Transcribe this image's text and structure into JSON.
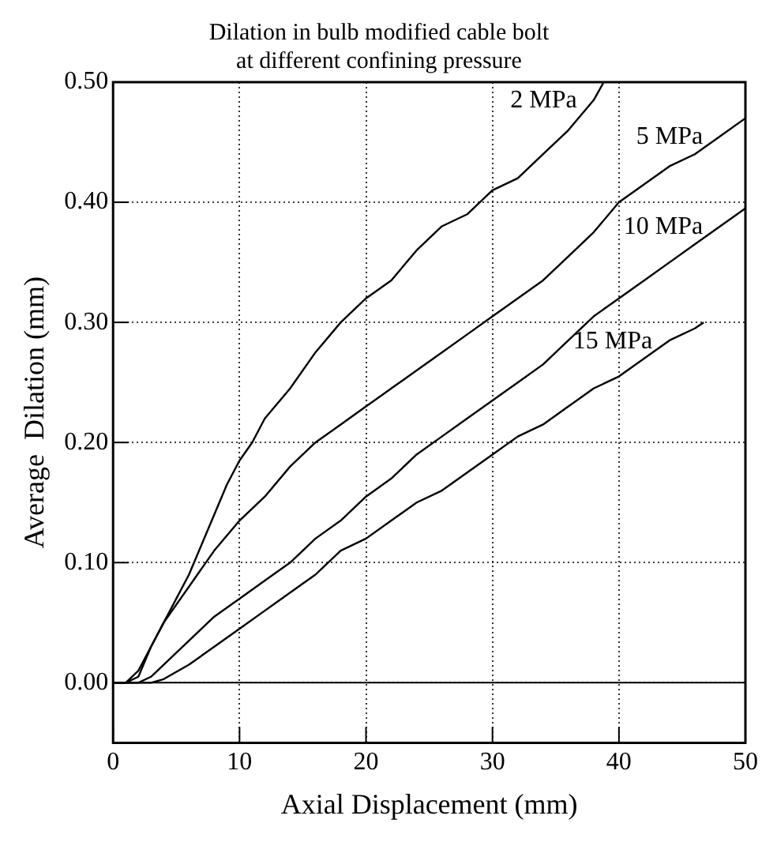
{
  "chart_data": {
    "type": "line",
    "title": "Dilation in bulb modified cable bolt\nat different confining pressure",
    "xlabel": "Axial Displacement (mm)",
    "ylabel": "Average  Dilation (mm)",
    "xlim": [
      0,
      50
    ],
    "xticks": [
      0,
      10,
      20,
      30,
      40,
      50
    ],
    "ylim": [
      -0.05,
      0.5
    ],
    "yticks": [
      {
        "value": 0,
        "label": "0.00"
      },
      {
        "value": 0.1,
        "label": "0.10"
      },
      {
        "value": 0.2,
        "label": "0.20"
      },
      {
        "value": 0.3,
        "label": "0.30"
      },
      {
        "value": 0.4,
        "label": "0.40"
      },
      {
        "value": 0.5,
        "label": "0.50"
      }
    ],
    "grid": true,
    "legend": false,
    "marker": "none",
    "line_style": "solid",
    "ref_lines": [
      {
        "axis": "y",
        "value": 0,
        "color": "#000000",
        "line_style": "solid"
      }
    ],
    "series": [
      {
        "name": "2 MPa",
        "color": "#000000",
        "x": [
          0,
          1,
          2,
          3,
          4,
          5,
          6,
          7,
          8,
          9,
          10,
          11,
          12,
          14,
          16,
          18,
          20,
          22,
          24,
          26,
          28,
          30,
          32,
          34,
          36,
          38,
          38.8
        ],
        "values": [
          0,
          0,
          0.005,
          0.03,
          0.05,
          0.07,
          0.09,
          0.115,
          0.14,
          0.165,
          0.185,
          0.2,
          0.22,
          0.245,
          0.275,
          0.3,
          0.32,
          0.335,
          0.36,
          0.38,
          0.39,
          0.41,
          0.42,
          0.44,
          0.46,
          0.485,
          0.5
        ]
      },
      {
        "name": "5 MPa",
        "color": "#000000",
        "x": [
          0,
          1,
          2,
          3,
          4,
          6,
          8,
          10,
          12,
          14,
          16,
          18,
          20,
          22,
          24,
          26,
          28,
          30,
          32,
          34,
          36,
          38,
          40,
          42,
          44,
          46,
          48,
          50
        ],
        "values": [
          0,
          0,
          0.01,
          0.03,
          0.05,
          0.08,
          0.11,
          0.135,
          0.155,
          0.18,
          0.2,
          0.215,
          0.23,
          0.245,
          0.26,
          0.275,
          0.29,
          0.305,
          0.32,
          0.335,
          0.355,
          0.375,
          0.4,
          0.415,
          0.43,
          0.44,
          0.455,
          0.47
        ]
      },
      {
        "name": "10 MPa",
        "color": "#000000",
        "x": [
          0,
          2,
          3,
          4,
          6,
          8,
          10,
          12,
          14,
          16,
          18,
          20,
          22,
          24,
          26,
          28,
          30,
          32,
          34,
          36,
          38,
          40,
          42,
          44,
          46,
          48,
          50
        ],
        "values": [
          0,
          0,
          0.005,
          0.015,
          0.035,
          0.055,
          0.07,
          0.085,
          0.1,
          0.12,
          0.135,
          0.155,
          0.17,
          0.19,
          0.205,
          0.22,
          0.235,
          0.25,
          0.265,
          0.285,
          0.305,
          0.32,
          0.335,
          0.35,
          0.365,
          0.38,
          0.395
        ]
      },
      {
        "name": "15 MPa",
        "color": "#000000",
        "x": [
          0,
          3,
          4,
          6,
          8,
          10,
          12,
          14,
          16,
          17,
          18,
          20,
          22,
          24,
          26,
          28,
          30,
          32,
          34,
          36,
          38,
          40,
          42,
          44,
          46,
          46.7
        ],
        "values": [
          0,
          0,
          0.003,
          0.015,
          0.03,
          0.045,
          0.06,
          0.075,
          0.09,
          0.1,
          0.11,
          0.12,
          0.135,
          0.15,
          0.16,
          0.175,
          0.19,
          0.205,
          0.215,
          0.23,
          0.245,
          0.255,
          0.27,
          0.285,
          0.295,
          0.3
        ]
      }
    ]
  }
}
